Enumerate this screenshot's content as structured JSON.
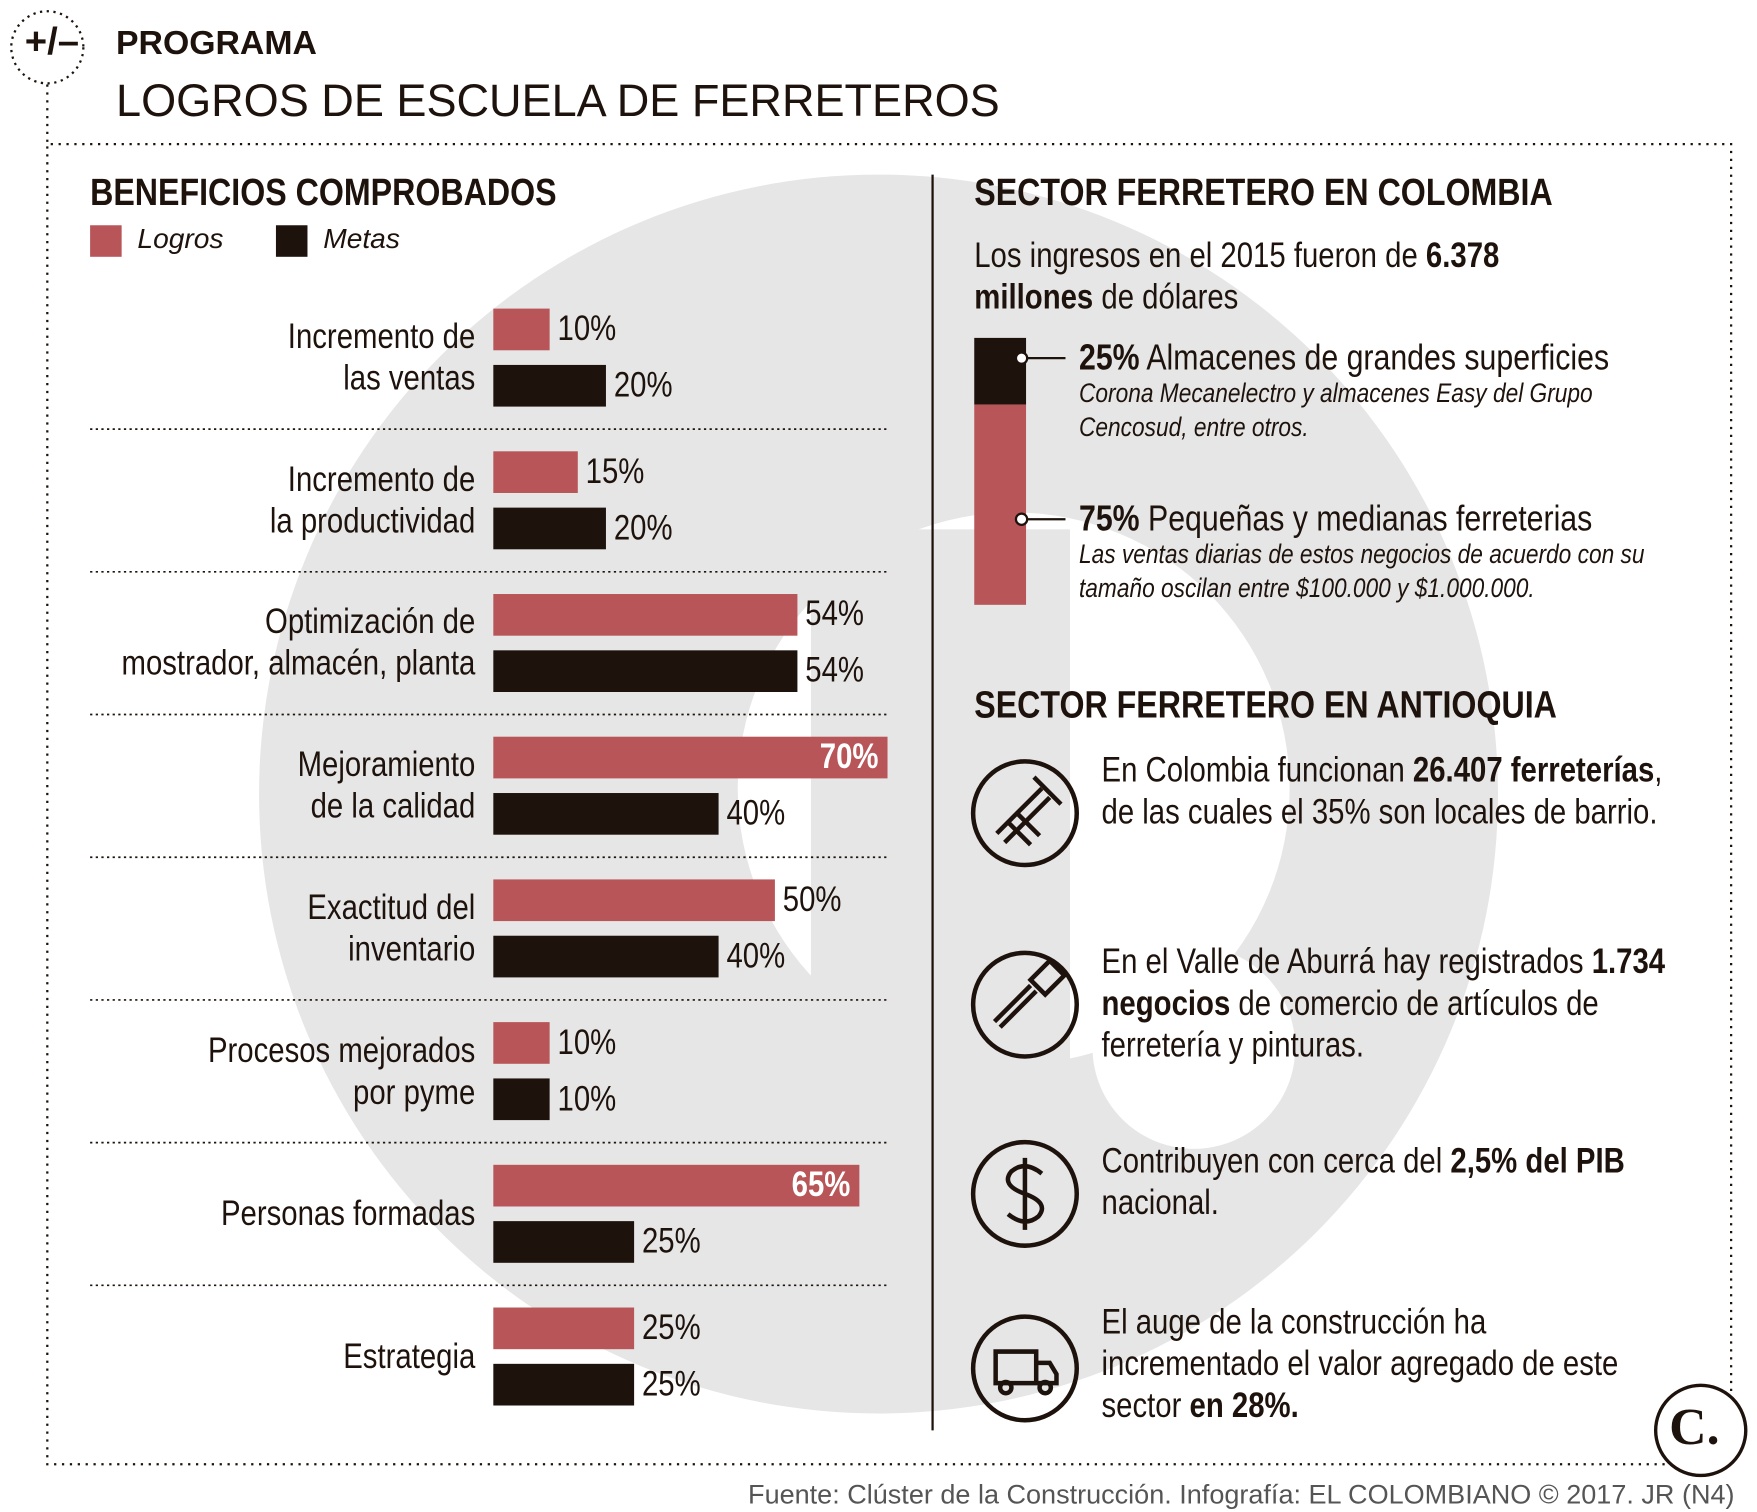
{
  "header": {
    "badge": "+/–",
    "kicker": "PROGRAMA",
    "title": "LOGROS DE ESCUELA DE FERRETEROS"
  },
  "chart_data": [
    {
      "type": "bar",
      "orientation": "horizontal",
      "title": "BENEFICIOS COMPROBADOS",
      "categories": [
        "Incremento de\nlas ventas",
        "Incremento de\nla productividad",
        "Optimización de\nmostrador, almacén, planta",
        "Mejoramiento\nde la calidad",
        "Exactitud del\ninventario",
        "Procesos mejorados\npor pyme",
        "Personas formadas",
        "Estrategia"
      ],
      "series": [
        {
          "name": "Logros",
          "color": "#b85558",
          "values": [
            10,
            15,
            54,
            70,
            50,
            10,
            65,
            25
          ],
          "value_labels": [
            "10%",
            "15%",
            "54%",
            "70%",
            "50%",
            "10%",
            "65%",
            "25%"
          ]
        },
        {
          "name": "Metas",
          "color": "#1e120c",
          "values": [
            20,
            20,
            54,
            40,
            40,
            10,
            25,
            25
          ],
          "value_labels": [
            "20%",
            "20%",
            "54%",
            "40%",
            "40%",
            "10%",
            "25%",
            "25%"
          ]
        }
      ],
      "xlim": [
        0,
        70
      ]
    },
    {
      "type": "stacked-column",
      "title": "SECTOR FERRETERO EN COLOMBIA",
      "subtitle_parts": [
        "Los ingresos en el 2015 fueron de ",
        "6.378 millones",
        " de dólares"
      ],
      "values": [
        25,
        75
      ],
      "value_labels": [
        "25%",
        "75%"
      ],
      "labels": [
        "Almacenes de grandes superficies",
        "Pequeñas y medianas ferreterias"
      ],
      "notes": [
        "Corona Mecanelectro y almacenes Easy del Grupo Cencosud, entre otros.",
        "Las ventas diarias de estos negocios de acuerdo con su tamaño oscilan entre $100.000 y $1.000.000."
      ],
      "colors": [
        "#1e120c",
        "#b85558"
      ]
    }
  ],
  "sector_antioquia": {
    "title": "SECTOR FERRETERO EN ANTIOQUIA",
    "items": [
      [
        "En Colombia funcionan ",
        "26.407 ferreterías",
        ", de las cuales el 35% son locales de barrio."
      ],
      [
        "En el Valle de Aburrá hay registrados ",
        "1.734 negocios",
        " de comercio de artículos de ferretería y pinturas."
      ],
      [
        "Contribuyen con cerca del ",
        "2,5% del PIB",
        " nacional."
      ],
      [
        "El auge de la construcción ha incrementado el valor agregado de este sector ",
        "en 28%."
      ]
    ]
  },
  "footer": {
    "source": "Fuente: Clúster de la Construcción. Infografía: EL COLOMBIANO © 2017. JR (N4)",
    "logo": "C."
  }
}
